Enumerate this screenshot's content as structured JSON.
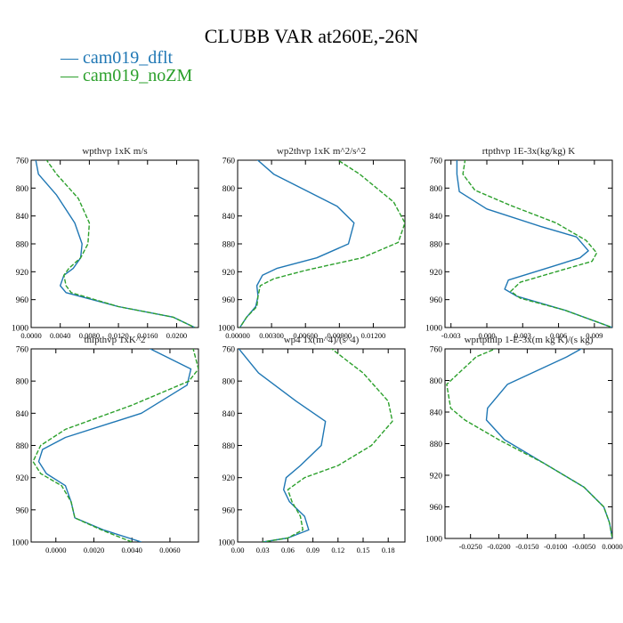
{
  "title": "CLUBB VAR at260E,-26N",
  "colors": {
    "dflt": "#1f77b4",
    "noZM": "#2ca02c"
  },
  "legend": [
    {
      "key": "dflt",
      "label": "cam019_dflt",
      "symbol": "—"
    },
    {
      "key": "noZM",
      "label": "cam019_noZM",
      "symbol": "—"
    }
  ],
  "chart_data": [
    {
      "type": "line",
      "title": "wpthvp  1xK m/s",
      "xlim": [
        0.0,
        0.023
      ],
      "ylim": [
        760,
        1000
      ],
      "xticks": [
        0.0,
        0.004,
        0.008,
        0.012,
        0.016,
        0.02
      ],
      "xticklabels": [
        "0.0000",
        "0.0040",
        "0.0080",
        "0.0120",
        "0.0160",
        "0.0200"
      ],
      "yticks": [
        760,
        800,
        840,
        880,
        920,
        960,
        1000
      ],
      "series": [
        {
          "name": "cam019_dflt",
          "color": "#1f77b4",
          "x": [
            0.0006,
            0.001,
            0.0035,
            0.006,
            0.007,
            0.0068,
            0.0058,
            0.0045,
            0.004,
            0.0048,
            0.012,
            0.0195,
            0.0225
          ],
          "y": [
            758,
            780,
            810,
            850,
            880,
            900,
            915,
            925,
            940,
            950,
            970,
            985,
            1000
          ]
        },
        {
          "name": "cam019_noZM",
          "color": "#2ca02c",
          "x": [
            0.002,
            0.0035,
            0.0065,
            0.008,
            0.0078,
            0.0068,
            0.0052,
            0.0045,
            0.0048,
            0.0055,
            0.012,
            0.0195,
            0.0225
          ],
          "y": [
            758,
            780,
            815,
            850,
            880,
            900,
            915,
            925,
            940,
            950,
            970,
            985,
            1000
          ]
        }
      ]
    },
    {
      "type": "line",
      "title": "wp2thvp  1xK m^2/s^2",
      "xlim": [
        0.0,
        0.0148
      ],
      "ylim": [
        760,
        1000
      ],
      "xticks": [
        0.0,
        0.003,
        0.006,
        0.009,
        0.012
      ],
      "xticklabels": [
        "0.00000",
        "0.00300",
        "0.00600",
        "0.00900",
        "0.01200"
      ],
      "yticks": [
        760,
        800,
        840,
        880,
        920,
        960,
        1000
      ],
      "series": [
        {
          "name": "cam019_dflt",
          "color": "#1f77b4",
          "x": [
            0.0015,
            0.0032,
            0.0088,
            0.0103,
            0.0098,
            0.007,
            0.0035,
            0.0022,
            0.0017,
            0.0018,
            0.0016,
            0.0008,
            0.0002
          ],
          "y": [
            756,
            780,
            826,
            850,
            880,
            900,
            915,
            925,
            940,
            955,
            970,
            985,
            1000
          ]
        },
        {
          "name": "cam019_noZM",
          "color": "#2ca02c",
          "x": [
            0.0085,
            0.0108,
            0.0138,
            0.0148,
            0.0142,
            0.011,
            0.006,
            0.0032,
            0.002,
            0.0018,
            0.0017,
            0.0008,
            0.0002
          ],
          "y": [
            756,
            780,
            820,
            850,
            878,
            900,
            918,
            930,
            940,
            955,
            970,
            985,
            1000
          ]
        }
      ]
    },
    {
      "type": "line",
      "title": "rtpthvp  1E-3x(kg/kg) K",
      "xlim": [
        -0.0035,
        0.0105
      ],
      "ylim": [
        760,
        1000
      ],
      "xticks": [
        -0.003,
        0.0,
        0.003,
        0.006,
        0.009
      ],
      "xticklabels": [
        "-0.003",
        "0.000",
        "0.003",
        "0.006",
        "0.009"
      ],
      "yticks": [
        760,
        800,
        840,
        880,
        920,
        960,
        1000
      ],
      "series": [
        {
          "name": "cam019_dflt",
          "color": "#1f77b4",
          "x": [
            -0.0025,
            -0.0025,
            -0.0023,
            0.0,
            0.0045,
            0.0075,
            0.0085,
            0.0078,
            0.005,
            0.0018,
            0.0015,
            0.0025,
            0.0065,
            0.0105
          ],
          "y": [
            758,
            780,
            805,
            830,
            855,
            870,
            890,
            900,
            915,
            932,
            945,
            955,
            975,
            1000
          ]
        },
        {
          "name": "cam019_noZM",
          "color": "#2ca02c",
          "x": [
            -0.0018,
            -0.002,
            -0.001,
            0.002,
            0.0058,
            0.0083,
            0.0092,
            0.0088,
            0.0058,
            0.0028,
            0.002,
            0.0028,
            0.0065,
            0.0105
          ],
          "y": [
            758,
            780,
            803,
            825,
            850,
            875,
            893,
            905,
            920,
            935,
            948,
            958,
            975,
            1000
          ]
        }
      ]
    },
    {
      "type": "line",
      "title": "thlpthvp  1xK^2",
      "xlim": [
        -0.0013,
        0.0075
      ],
      "ylim": [
        760,
        1000
      ],
      "xticks": [
        0.0,
        0.002,
        0.004,
        0.006
      ],
      "xticklabels": [
        "0.0000",
        "0.0020",
        "0.0040",
        "0.0060"
      ],
      "yticks": [
        760,
        800,
        840,
        880,
        920,
        960,
        1000
      ],
      "series": [
        {
          "name": "cam019_dflt",
          "color": "#1f77b4",
          "x": [
            0.0048,
            0.0071,
            0.0069,
            0.0045,
            0.0005,
            -0.0007,
            -0.0009,
            -0.0005,
            0.0005,
            0.0008,
            0.001,
            0.0025,
            0.0045
          ],
          "y": [
            758,
            785,
            805,
            840,
            870,
            885,
            900,
            915,
            930,
            950,
            970,
            985,
            1000
          ]
        },
        {
          "name": "cam019_noZM",
          "color": "#2ca02c",
          "x": [
            0.0072,
            0.0075,
            0.007,
            0.004,
            0.0005,
            -0.0008,
            -0.0012,
            -0.0008,
            0.0003,
            0.0008,
            0.001,
            0.0024,
            0.004
          ],
          "y": [
            758,
            785,
            800,
            830,
            860,
            880,
            900,
            915,
            930,
            950,
            970,
            985,
            1000
          ]
        }
      ]
    },
    {
      "type": "line",
      "title": "wp4  1x(m^4)/(s^4)",
      "xlim": [
        0.0,
        0.2
      ],
      "ylim": [
        760,
        1000
      ],
      "xticks": [
        0.0,
        0.03,
        0.06,
        0.09,
        0.12,
        0.15,
        0.18
      ],
      "xticklabels": [
        "0.00",
        "0.03",
        "0.06",
        "0.09",
        "0.12",
        "0.15",
        "0.18"
      ],
      "yticks": [
        760,
        800,
        840,
        880,
        920,
        960,
        1000
      ],
      "series": [
        {
          "name": "cam019_dflt",
          "color": "#1f77b4",
          "x": [
            0.0,
            0.025,
            0.07,
            0.105,
            0.1,
            0.075,
            0.058,
            0.055,
            0.062,
            0.08,
            0.085,
            0.06,
            0.03
          ],
          "y": [
            758,
            790,
            825,
            850,
            880,
            905,
            920,
            935,
            950,
            968,
            985,
            995,
            1000
          ]
        },
        {
          "name": "cam019_noZM",
          "color": "#2ca02c",
          "x": [
            0.11,
            0.15,
            0.18,
            0.185,
            0.16,
            0.12,
            0.08,
            0.06,
            0.065,
            0.075,
            0.078,
            0.06,
            0.03
          ],
          "y": [
            758,
            790,
            825,
            850,
            880,
            905,
            920,
            935,
            950,
            968,
            985,
            995,
            1000
          ]
        }
      ]
    },
    {
      "type": "line",
      "title": "wprtpthlp  1-E-3x(m kg K)/(s kg)",
      "xlim": [
        -0.0295,
        0.0
      ],
      "ylim": [
        760,
        1000
      ],
      "xticks": [
        -0.025,
        -0.02,
        -0.015,
        -0.01,
        -0.005,
        0.0
      ],
      "xticklabels": [
        "-0.0250",
        "-0.0200",
        "-0.0150",
        "-0.0100",
        "-0.0050",
        "0.0000"
      ],
      "yticks": [
        760,
        800,
        840,
        880,
        920,
        960,
        1000
      ],
      "series": [
        {
          "name": "cam019_dflt",
          "color": "#1f77b4",
          "x": [
            -0.0035,
            -0.008,
            -0.0185,
            -0.022,
            -0.0222,
            -0.019,
            -0.012,
            -0.005,
            -0.0015,
            -0.0005,
            0.0
          ],
          "y": [
            752,
            770,
            805,
            835,
            850,
            875,
            905,
            935,
            960,
            980,
            1000
          ]
        },
        {
          "name": "cam019_noZM",
          "color": "#2ca02c",
          "x": [
            -0.018,
            -0.024,
            -0.0292,
            -0.0285,
            -0.026,
            -0.02,
            -0.012,
            -0.005,
            -0.0015,
            -0.0005,
            0.0
          ],
          "y": [
            752,
            770,
            805,
            835,
            850,
            875,
            905,
            935,
            960,
            980,
            1000
          ]
        }
      ]
    }
  ]
}
